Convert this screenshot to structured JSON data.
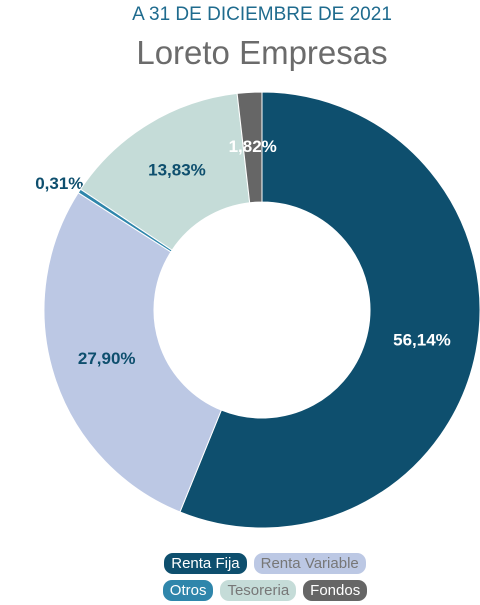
{
  "chart_data": {
    "type": "donut",
    "title": "A 31 DE DICIEMBRE DE 2021",
    "subtitle": "Loreto Empresas",
    "categories": [
      "Renta Fija",
      "Renta Variable",
      "Otros",
      "Tesoreria",
      "Fondos"
    ],
    "values": [
      56.14,
      27.9,
      0.31,
      13.83,
      1.82
    ],
    "value_labels": [
      "56,14%",
      "27,90%",
      "0,31%",
      "13,83%",
      "1,82%"
    ],
    "colors": [
      "#0e4f6e",
      "#bcc8e4",
      "#2f86ab",
      "#c5dcd8",
      "#666666"
    ],
    "legend": "bottom"
  }
}
